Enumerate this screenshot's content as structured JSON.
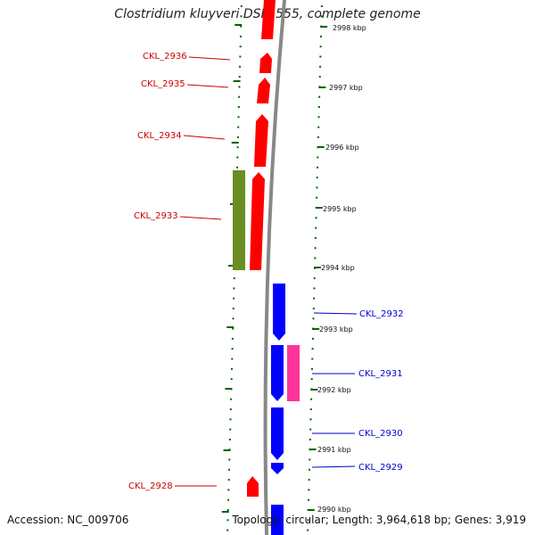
{
  "title": "Clostridium kluyveri DSM 555, complete genome",
  "footer": {
    "accession": "Accession: NC_009706",
    "topology": "Topology: circular; Length: 3,964,618 bp; Genes: 3,919"
  },
  "colors": {
    "reverse_cds": "#ff0000",
    "forward_cds": "#0000ff",
    "rrna_like": "#6b8e23",
    "forward_other": "#ff3399",
    "backbone": "#888888",
    "ticks": "#006400",
    "label_left": "#cc0000",
    "label_right": "#0000cc"
  },
  "scale_labels": [
    "2998 kbp",
    "2997 kbp",
    "2996 kbp",
    "2995 kbp",
    "2994 kbp",
    "2993 kbp",
    "2992 kbp",
    "2991 kbp",
    "2990 kbp"
  ],
  "left_labels": [
    "CKL_2936",
    "CKL_2935",
    "CKL_2934",
    "CKL_2933",
    "CKL_2928"
  ],
  "right_labels": [
    "CKL_2932",
    "CKL_2931",
    "CKL_2930",
    "CKL_2929"
  ]
}
